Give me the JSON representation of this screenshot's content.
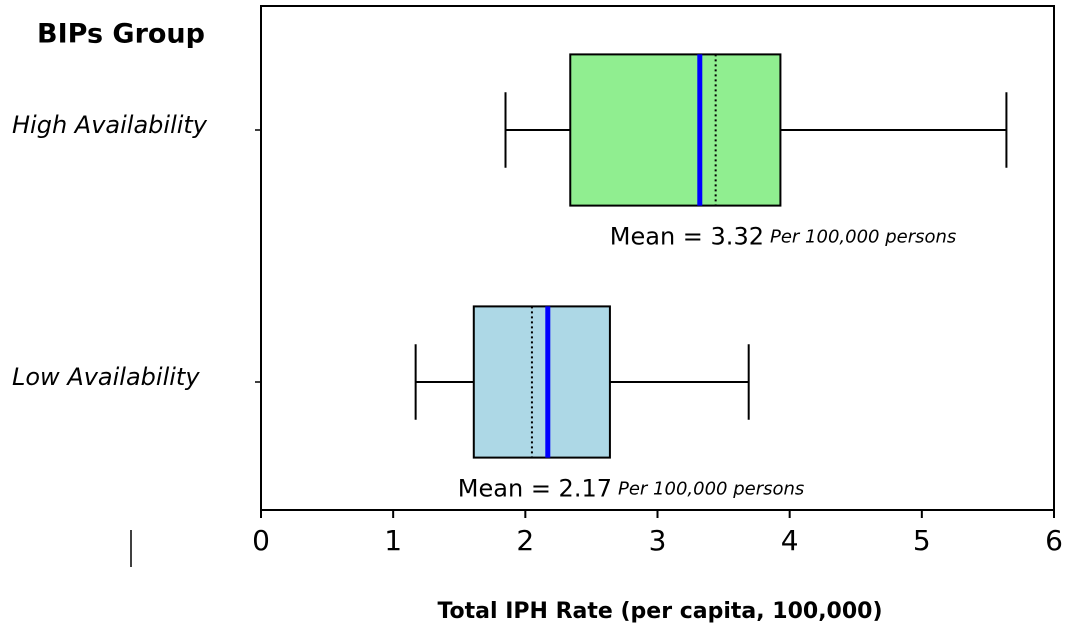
{
  "chart_data": {
    "type": "boxplot",
    "orientation": "horizontal",
    "ylabel": "BIPs Group",
    "xlabel": "Total IPH Rate (per capita, 100,000)",
    "xlim": [
      0,
      6
    ],
    "xticks": [
      0,
      1,
      2,
      3,
      4,
      5,
      6
    ],
    "series": [
      {
        "name": "High Availability",
        "color": "#90ee90",
        "whislo": 1.85,
        "q1": 2.34,
        "median": 3.44,
        "q3": 3.93,
        "whishi": 5.64,
        "mean": 3.32,
        "mean_label": "Mean = 3.32",
        "note": "Per 100,000 persons",
        "mean_color": "#0000ff"
      },
      {
        "name": "Low Availability",
        "color": "#add8e6",
        "whislo": 1.17,
        "q1": 1.61,
        "median": 2.05,
        "q3": 2.64,
        "whishi": 3.69,
        "mean": 2.17,
        "mean_label": "Mean = 2.17",
        "note": "Per 100,000 persons",
        "mean_color": "#0000ff"
      }
    ]
  }
}
